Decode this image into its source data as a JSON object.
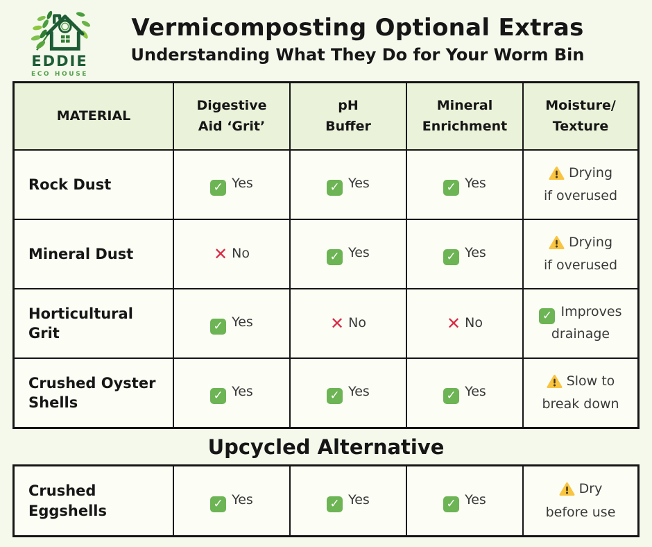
{
  "logo": {
    "brand": "EDDIE",
    "tagline": "ECO HOUSE"
  },
  "header": {
    "title": "Vermicomposting Optional Extras",
    "subtitle": "Understanding What They Do for Your Worm Bin"
  },
  "icons": {
    "check": "✓",
    "cross": "✕",
    "warn": "⚠"
  },
  "colors": {
    "page_bg": "#f5f9ec",
    "header_row_bg": "#eaf3da",
    "cell_bg": "#fcfdf5",
    "border": "#151515",
    "check_green": "#6cb454",
    "cross_red": "#d92b45",
    "warning_yellow": "#f9c440",
    "brand_dark_green": "#1d5c35",
    "brand_green": "#55a14b"
  },
  "main_table": {
    "columns": [
      "MATERIAL",
      "Digestive\nAid ‘Grit’",
      "pH\nBuffer",
      "Mineral\nEnrichment",
      "Moisture/\nTexture"
    ],
    "rows": [
      {
        "material": "Rock Dust",
        "cells": [
          {
            "icon": "check",
            "text": "Yes"
          },
          {
            "icon": "check",
            "text": "Yes"
          },
          {
            "icon": "check",
            "text": "Yes"
          },
          {
            "icon": "warn",
            "text": "Drying\nif overused"
          }
        ]
      },
      {
        "material": "Mineral Dust",
        "cells": [
          {
            "icon": "cross",
            "text": "No"
          },
          {
            "icon": "check",
            "text": "Yes"
          },
          {
            "icon": "check",
            "text": "Yes"
          },
          {
            "icon": "warn",
            "text": "Drying\nif overused"
          }
        ]
      },
      {
        "material": "Horticultural Grit",
        "cells": [
          {
            "icon": "check",
            "text": "Yes"
          },
          {
            "icon": "cross",
            "text": "No"
          },
          {
            "icon": "cross",
            "text": "No"
          },
          {
            "icon": "check",
            "text": "Improves\ndrainage"
          }
        ]
      },
      {
        "material": "Crushed Oyster Shells",
        "cells": [
          {
            "icon": "check",
            "text": "Yes"
          },
          {
            "icon": "check",
            "text": "Yes"
          },
          {
            "icon": "check",
            "text": "Yes"
          },
          {
            "icon": "warn",
            "text": "Slow to\nbreak down"
          }
        ]
      }
    ]
  },
  "section_heading": "Upcycled Alternative",
  "alt_table": {
    "rows": [
      {
        "material": "Crushed Eggshells",
        "cells": [
          {
            "icon": "check",
            "text": "Yes"
          },
          {
            "icon": "check",
            "text": "Yes"
          },
          {
            "icon": "check",
            "text": "Yes"
          },
          {
            "icon": "warn",
            "text": "Dry\nbefore use"
          }
        ]
      }
    ]
  }
}
